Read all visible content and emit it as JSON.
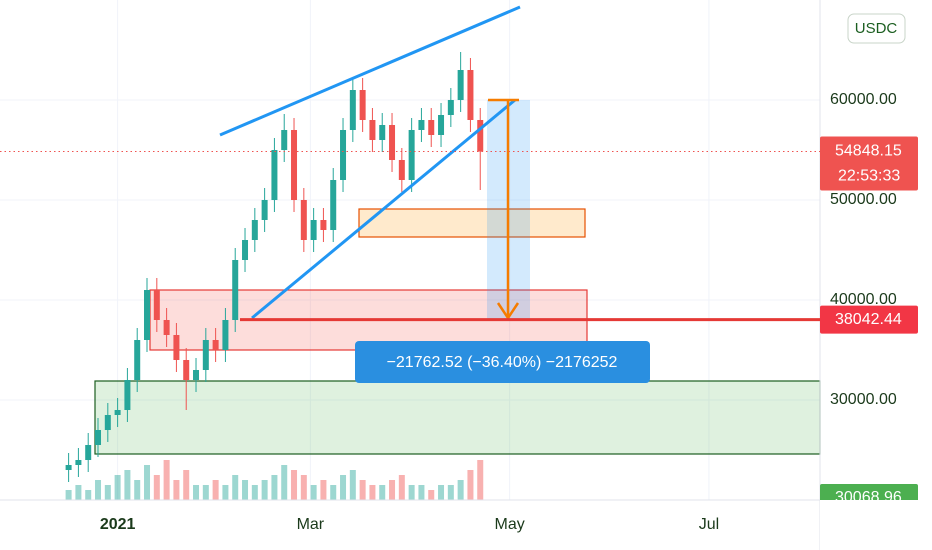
{
  "chart_data": {
    "type": "candlestick",
    "currency": "USDC",
    "x": [
      -15,
      -12,
      -9,
      -6,
      -3,
      0,
      3,
      6,
      9,
      12,
      15,
      18,
      21,
      24,
      27,
      30,
      33,
      36,
      39,
      42,
      45,
      48,
      51,
      54,
      57,
      60,
      63,
      66,
      69,
      72,
      75,
      78,
      81,
      84,
      87,
      90,
      93,
      96,
      99,
      102,
      105,
      108,
      111
    ],
    "open": [
      23000,
      23500,
      24000,
      25500,
      27000,
      28500,
      29000,
      32000,
      36000,
      41000,
      38000,
      36500,
      34000,
      32000,
      33000,
      36000,
      35000,
      38000,
      44000,
      46000,
      48000,
      50000,
      55000,
      57000,
      50000,
      46000,
      48000,
      47000,
      52000,
      57000,
      61000,
      58000,
      56000,
      57500,
      54000,
      52000,
      57000,
      58000,
      56500,
      58500,
      60000,
      63000,
      58000
    ],
    "high": [
      24700,
      25200,
      26700,
      28200,
      29700,
      30200,
      33200,
      37200,
      42200,
      42200,
      39200,
      37700,
      35200,
      34200,
      37200,
      37200,
      39200,
      45200,
      47200,
      49200,
      51200,
      56200,
      58600,
      58200,
      51200,
      49200,
      49200,
      53200,
      58200,
      62200,
      62200,
      59200,
      58700,
      58700,
      55200,
      58200,
      59200,
      59200,
      59700,
      61200,
      64800,
      64200,
      59200
    ],
    "low": [
      21800,
      22300,
      22800,
      24300,
      25800,
      27300,
      27800,
      30800,
      34800,
      36800,
      35300,
      32800,
      29000,
      30800,
      31800,
      33800,
      33800,
      36800,
      42800,
      44800,
      46800,
      48800,
      53800,
      48800,
      44800,
      44800,
      45800,
      45800,
      50800,
      55800,
      56800,
      54800,
      54800,
      52800,
      50800,
      50800,
      55800,
      55300,
      55300,
      57300,
      58800,
      56800,
      51000
    ],
    "close": [
      23500,
      24000,
      25500,
      27000,
      28500,
      29000,
      32000,
      36000,
      41000,
      38000,
      36500,
      34000,
      32000,
      33000,
      36000,
      35000,
      38000,
      44000,
      46000,
      48000,
      50000,
      55000,
      57000,
      50000,
      46000,
      48000,
      47000,
      52000,
      57000,
      61000,
      58000,
      56000,
      57500,
      54000,
      52000,
      57000,
      58000,
      56500,
      58500,
      60000,
      63000,
      58000,
      54848.15
    ],
    "volume": [
      2,
      3,
      2,
      4,
      3,
      5,
      6,
      4,
      7,
      5,
      8,
      4,
      6,
      3,
      3,
      4,
      3,
      5,
      4,
      3,
      4,
      5,
      7,
      6,
      5,
      3,
      4,
      3,
      5,
      6,
      4,
      3,
      3,
      4,
      5,
      3,
      3,
      2,
      3,
      3,
      4,
      6,
      8
    ],
    "up_color": "#26a69a",
    "down_color": "#ef5350",
    "xlim": [
      -36,
      215
    ],
    "xticks": [
      {
        "value": 0,
        "label": "2021"
      },
      {
        "value": 59,
        "label": "Mar"
      },
      {
        "value": 120,
        "label": "May"
      },
      {
        "value": 181,
        "label": "Jul"
      }
    ],
    "ylim": [
      20000,
      70000
    ],
    "yticks": [
      {
        "value": 30000,
        "label": "30000.00"
      },
      {
        "value": 40000,
        "label": "40000.00"
      },
      {
        "value": 50000,
        "label": "50000.00"
      },
      {
        "value": 60000,
        "label": "60000.00"
      }
    ],
    "y2lim": [
      0,
      12
    ],
    "grid": true,
    "last_price": 54848.15,
    "countdown": "22:53:33",
    "level_price": 38042.44,
    "low_price": 30068.96,
    "measure_label": "−21762.52 (−36.40%) −2176252"
  }
}
